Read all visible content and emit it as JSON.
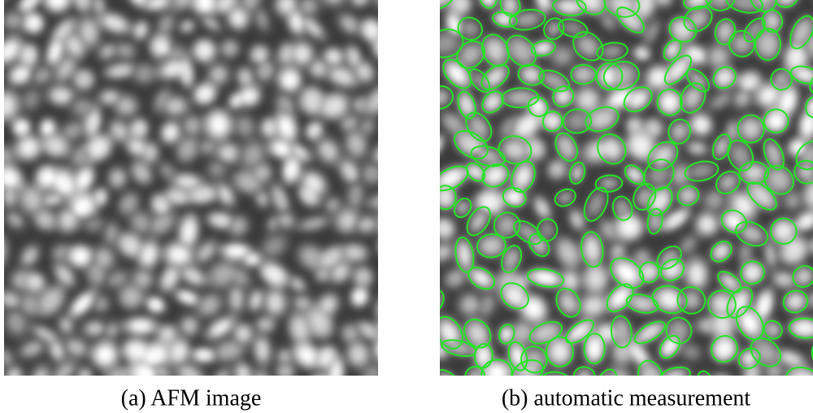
{
  "figure": {
    "panels": [
      {
        "caption": "(a) AFM image"
      },
      {
        "caption": "(b) automatic measurement"
      }
    ]
  }
}
